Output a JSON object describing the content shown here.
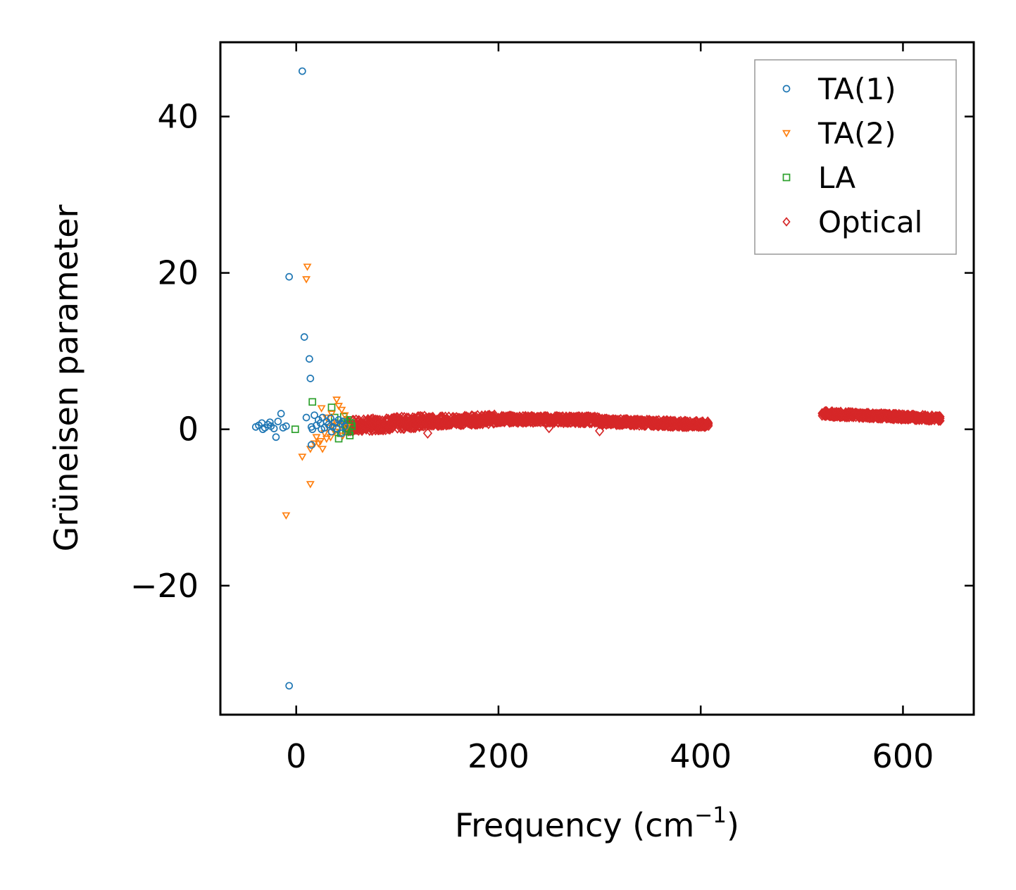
{
  "chart_data": {
    "type": "scatter",
    "title": "",
    "xlabel": "Frequency (cm",
    "xlabel_sup": "−1",
    "xlabel_end": ")",
    "ylabel": "Grüneisen parameter",
    "xlim": [
      -75,
      670
    ],
    "ylim": [
      -36.5,
      49.5
    ],
    "xticks": [
      0,
      200,
      400,
      600
    ],
    "xtick_labels": [
      "0",
      "200",
      "400",
      "600"
    ],
    "yticks": [
      -20,
      0,
      20,
      40
    ],
    "ytick_labels": [
      "−20",
      "0",
      "20",
      "40"
    ],
    "grid": false,
    "legend_position": "top-right",
    "series": [
      {
        "name": "TA(1)",
        "marker": "circle",
        "color": "#1f77b4",
        "points": [
          [
            6,
            45.8
          ],
          [
            -7,
            19.5
          ],
          [
            8,
            11.8
          ],
          [
            13,
            9
          ],
          [
            14,
            6.5
          ],
          [
            -7,
            -32.8
          ],
          [
            -40,
            0.3
          ],
          [
            -37,
            0.5
          ],
          [
            -34,
            0.8
          ],
          [
            -31,
            0.2
          ],
          [
            -28,
            0.6
          ],
          [
            -25,
            0.4
          ],
          [
            -22,
            0.1
          ],
          [
            -20,
            -1.0
          ],
          [
            -18,
            1.0
          ],
          [
            -15,
            2.0
          ],
          [
            -13,
            0.2
          ],
          [
            -10,
            0.4
          ],
          [
            -26,
            0.9
          ],
          [
            -33,
            0.0
          ],
          [
            10,
            1.5
          ],
          [
            15,
            0.3
          ],
          [
            16,
            0.0
          ],
          [
            18,
            1.8
          ],
          [
            20,
            0.5
          ],
          [
            22,
            1.2
          ],
          [
            24,
            0.8
          ],
          [
            26,
            1.5
          ],
          [
            28,
            0.2
          ],
          [
            30,
            1.0
          ],
          [
            32,
            0.6
          ],
          [
            34,
            1.4
          ],
          [
            36,
            0.3
          ],
          [
            38,
            0.9
          ],
          [
            40,
            0.1
          ],
          [
            42,
            1.2
          ],
          [
            44,
            0.7
          ],
          [
            46,
            1.0
          ],
          [
            48,
            0.4
          ],
          [
            15,
            -2.0
          ],
          [
            25,
            0.0
          ],
          [
            35,
            -0.3
          ],
          [
            45,
            -0.5
          ]
        ]
      },
      {
        "name": "TA(2)",
        "marker": "triangle-down",
        "color": "#ff7f0e",
        "points": [
          [
            11,
            20.8
          ],
          [
            10,
            19.2
          ],
          [
            -10,
            -11
          ],
          [
            14,
            -7
          ],
          [
            6,
            -3.5
          ],
          [
            14,
            -2.5
          ],
          [
            20,
            -1.0
          ],
          [
            22,
            -1.8
          ],
          [
            24,
            -1.5
          ],
          [
            26,
            -2.5
          ],
          [
            28,
            -0.5
          ],
          [
            30,
            -1.2
          ],
          [
            32,
            0.2
          ],
          [
            34,
            -1.0
          ],
          [
            36,
            0.5
          ],
          [
            38,
            -0.3
          ],
          [
            40,
            0.8
          ],
          [
            42,
            3.0
          ],
          [
            40,
            3.8
          ],
          [
            45,
            2.5
          ],
          [
            25,
            2.7
          ],
          [
            30,
            1.5
          ],
          [
            35,
            2.0
          ],
          [
            48,
            1.8
          ],
          [
            50,
            0.3
          ],
          [
            46,
            -0.8
          ],
          [
            44,
            0.5
          ],
          [
            18,
            -1.8
          ]
        ]
      },
      {
        "name": "LA",
        "marker": "square",
        "color": "#2ca02c",
        "points": [
          [
            -1,
            0
          ],
          [
            16,
            3.5
          ],
          [
            35,
            2.8
          ],
          [
            38,
            1.5
          ],
          [
            40,
            0.0
          ],
          [
            42,
            -1.2
          ],
          [
            44,
            -0.5
          ],
          [
            46,
            0.6
          ],
          [
            48,
            1.0
          ],
          [
            50,
            0.2
          ],
          [
            52,
            -0.3
          ],
          [
            54,
            0.8
          ],
          [
            55,
            0.4
          ],
          [
            53,
            -0.8
          ],
          [
            51,
            1.2
          ],
          [
            49,
            -0.2
          ],
          [
            47,
            1.6
          ]
        ]
      },
      {
        "name": "Optical",
        "marker": "diamond",
        "color": "#d62728",
        "bands": [
          {
            "x_start": 50,
            "x_end": 130,
            "y_center_start": 0.4,
            "y_center_end": 1.0,
            "y_spread": 1.6
          },
          {
            "x_start": 130,
            "x_end": 200,
            "y_center_start": 1.0,
            "y_center_end": 1.3,
            "y_spread": 1.2
          },
          {
            "x_start": 200,
            "x_end": 300,
            "y_center_start": 1.3,
            "y_center_end": 1.2,
            "y_spread": 0.9
          },
          {
            "x_start": 300,
            "x_end": 408,
            "y_center_start": 1.0,
            "y_center_end": 0.6,
            "y_spread": 0.8
          },
          {
            "x_start": 520,
            "x_end": 637,
            "y_center_start": 2.0,
            "y_center_end": 1.4,
            "y_spread": 0.7
          }
        ],
        "outliers": [
          [
            130,
            -0.5
          ],
          [
            300,
            -0.2
          ],
          [
            250,
            0.2
          ]
        ]
      }
    ]
  }
}
